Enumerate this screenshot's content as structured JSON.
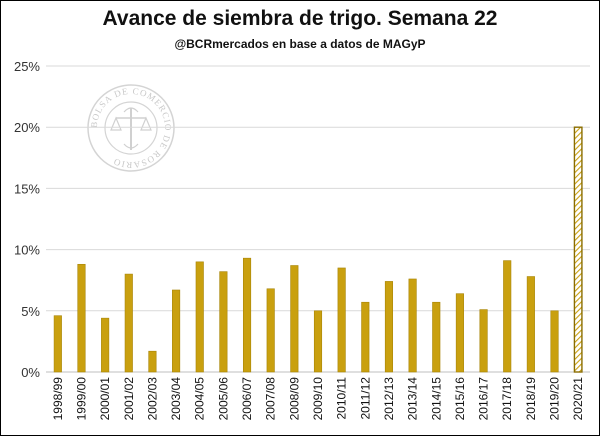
{
  "chart_data": {
    "type": "bar",
    "title": "Avance de siembra de trigo. Semana 22",
    "subtitle": "@BCRmercados en base a datos de MAGyP",
    "watermark": "BOLSA DE COMERCIO DE ROSARIO",
    "categories": [
      "1998/99",
      "1999/00",
      "2000/01",
      "2001/02",
      "2002/03",
      "2003/04",
      "2004/05",
      "2005/06",
      "2006/07",
      "2007/08",
      "2008/09",
      "2009/10",
      "2010/11",
      "2011/12",
      "2012/13",
      "2013/14",
      "2014/15",
      "2015/16",
      "2016/17",
      "2017/18",
      "2018/19",
      "2019/20",
      "2020/21"
    ],
    "values": [
      4.6,
      8.8,
      4.4,
      8.0,
      1.7,
      6.7,
      9.0,
      8.2,
      9.3,
      6.8,
      8.7,
      5.0,
      8.5,
      5.7,
      7.4,
      7.6,
      5.7,
      6.4,
      5.1,
      9.1,
      7.8,
      5.0,
      20.0
    ],
    "highlight_index": 22,
    "y_ticks": [
      "0%",
      "5%",
      "10%",
      "15%",
      "20%",
      "25%"
    ],
    "ylim": [
      0,
      25
    ],
    "grid": true,
    "colors": {
      "bar": "#C9A00F",
      "bar_edge": "#A88508",
      "grid": "#D9D9D9",
      "axis": "#BFBFBF"
    }
  }
}
